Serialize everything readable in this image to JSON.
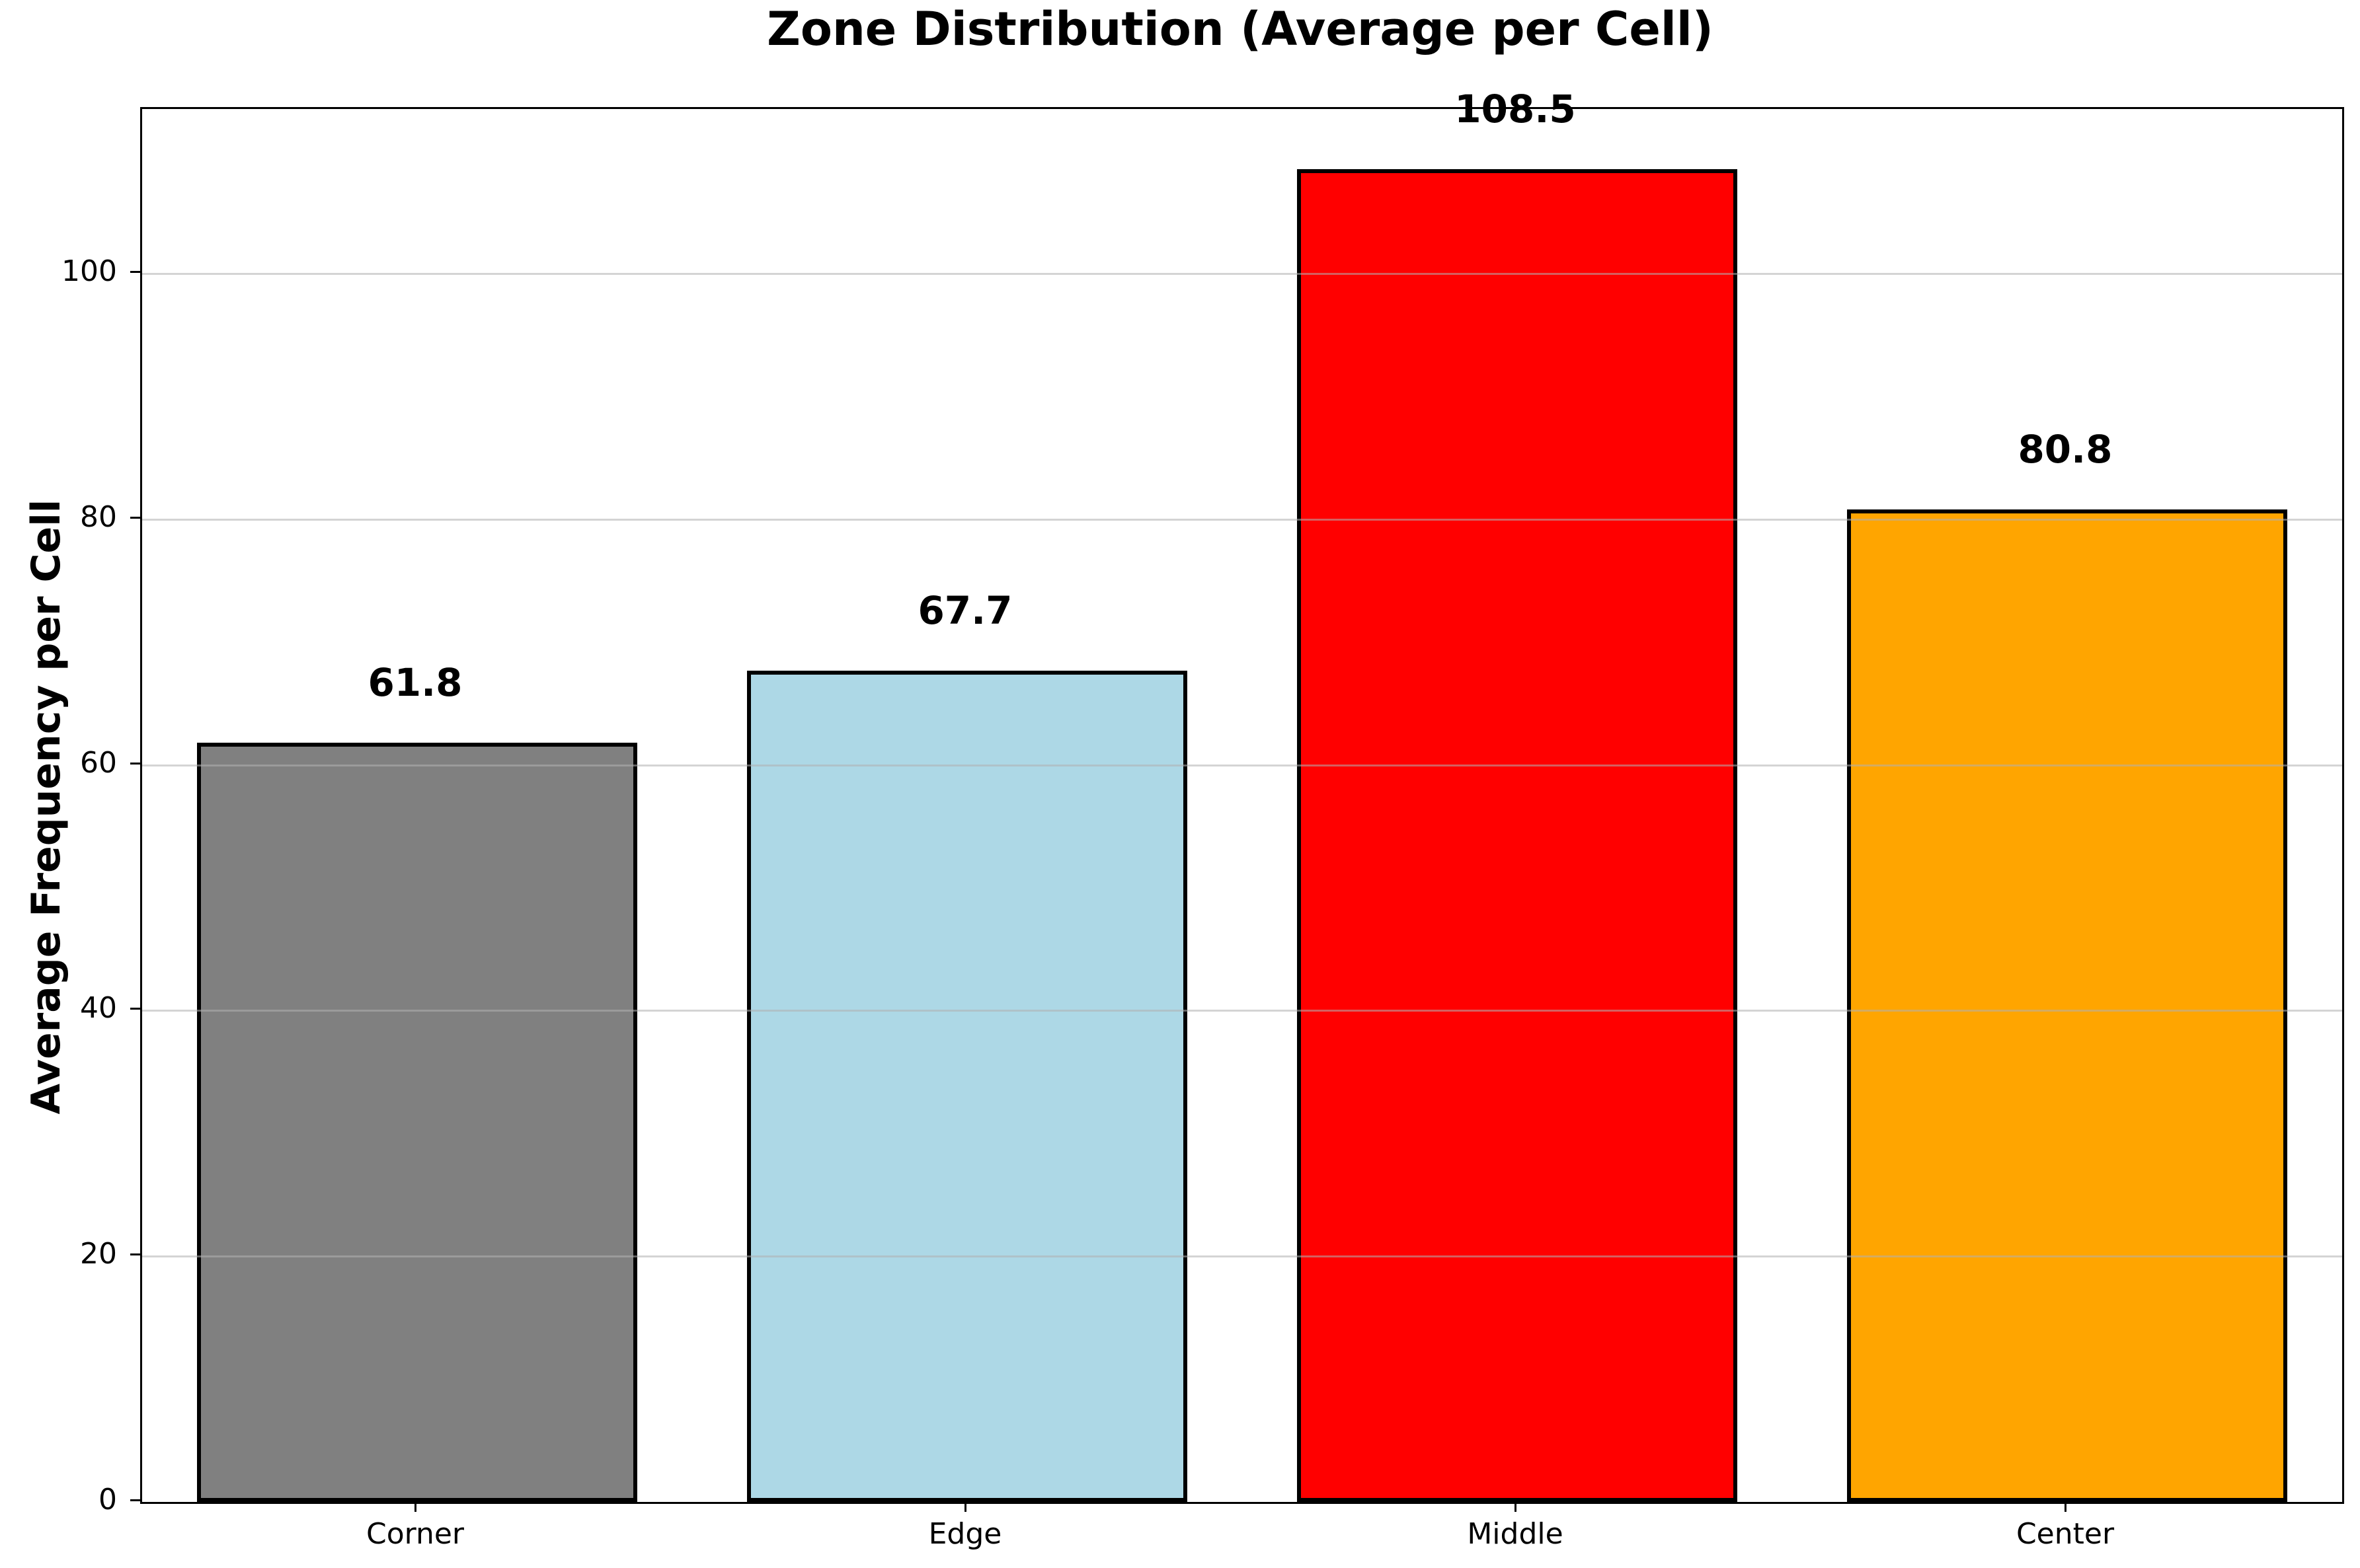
{
  "chart_data": {
    "type": "bar",
    "title": "Zone Distribution (Average per Cell)",
    "xlabel": "",
    "ylabel": "Average Frequency per Cell",
    "categories": [
      "Corner",
      "Edge",
      "Middle",
      "Center"
    ],
    "values": [
      61.8,
      67.7,
      108.5,
      80.8
    ],
    "value_labels": [
      "61.8",
      "67.7",
      "108.5",
      "80.8"
    ],
    "bar_colors": [
      "#808080",
      "#ADD8E6",
      "#FF0000",
      "#FFA500"
    ],
    "bar_edge_color": "#000000",
    "yticks": [
      0,
      20,
      40,
      60,
      80,
      100
    ],
    "ylim": [
      0,
      113.4
    ],
    "grid": "y-only, drawn above bars",
    "grid_color": "#b0b0b0",
    "spine_color": "#000000",
    "background_color": "#ffffff",
    "legend": "none"
  }
}
